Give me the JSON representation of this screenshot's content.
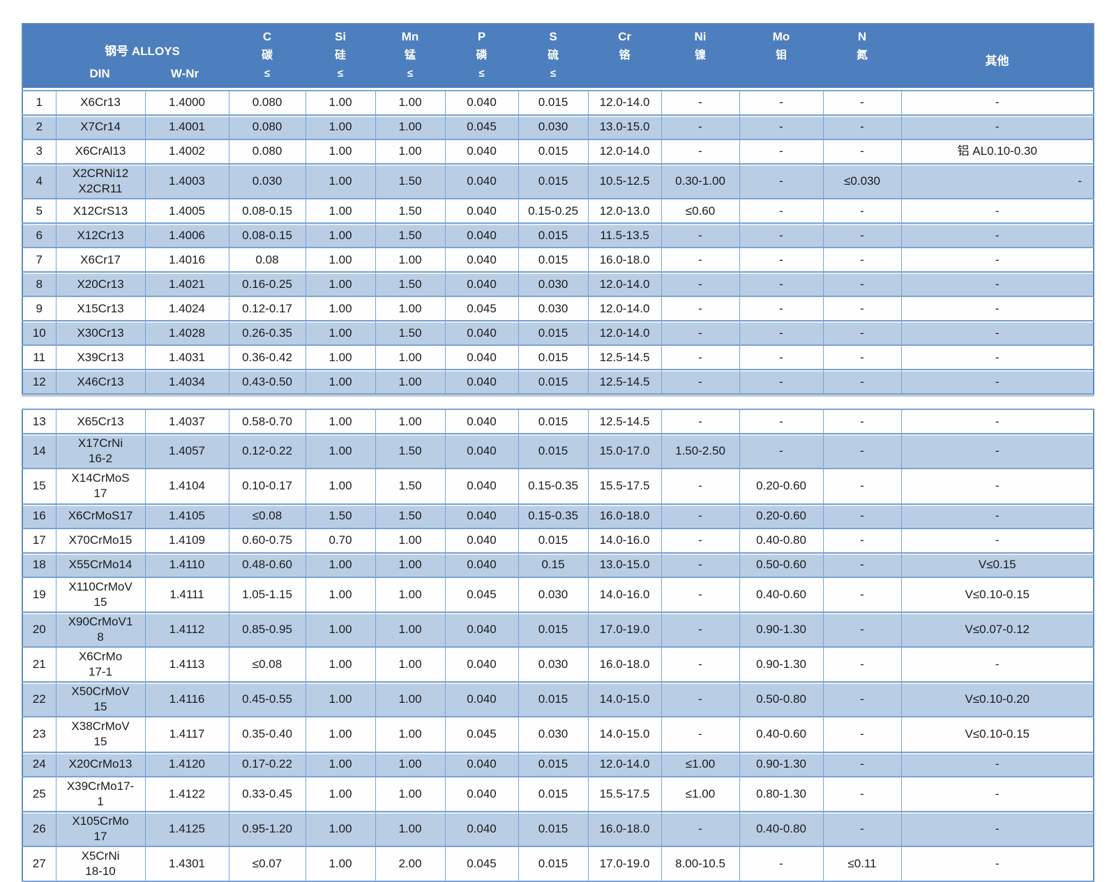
{
  "colors": {
    "header_bg": "#4d7ebd",
    "header_text": "#ffffff",
    "row_bg": "#fefefe",
    "row_alt_bg": "#b9cde4",
    "border": "#78a2d5",
    "body_text": "#1b1b1b"
  },
  "table": {
    "corner": "",
    "group_title": "钢号 ALLOYS",
    "sub_din": "DIN",
    "sub_wnr": "W-Nr",
    "cols": [
      {
        "sym": "C",
        "cn": "碳",
        "lim": "≤"
      },
      {
        "sym": "Si",
        "cn": "硅",
        "lim": "≤"
      },
      {
        "sym": "Mn",
        "cn": "锰",
        "lim": "≤"
      },
      {
        "sym": "P",
        "cn": "磷",
        "lim": "≤"
      },
      {
        "sym": "S",
        "cn": "硫",
        "lim": "≤"
      },
      {
        "sym": "Cr",
        "cn": "铬",
        "lim": ""
      },
      {
        "sym": "Ni",
        "cn": "镍",
        "lim": ""
      },
      {
        "sym": "Mo",
        "cn": "钼",
        "lim": ""
      },
      {
        "sym": "N",
        "cn": "氮",
        "lim": ""
      },
      {
        "sym": "其他",
        "cn": "",
        "lim": ""
      }
    ]
  },
  "chart_data": {
    "type": "table",
    "title": "钢号 ALLOYS — stainless steel alloy chemical composition (DIN / W-Nr)",
    "columns": [
      "#",
      "DIN",
      "W-Nr",
      "C 碳 ≤",
      "Si 硅 ≤",
      "Mn 锰 ≤",
      "P 磷 ≤",
      "S 硫 ≤",
      "Cr 铬",
      "Ni 镍",
      "Mo 钼",
      "N 氮",
      "其他"
    ],
    "other_right_aligned_rows": [
      "4"
    ],
    "blocks": [
      [
        [
          "1",
          "X6Cr13",
          "1.4000",
          "0.080",
          "1.00",
          "1.00",
          "0.040",
          "0.015",
          "12.0-14.0",
          "-",
          "-",
          "-",
          "-"
        ],
        [
          "2",
          "X7Cr14",
          "1.4001",
          "0.080",
          "1.00",
          "1.00",
          "0.045",
          "0.030",
          "13.0-15.0",
          "-",
          "-",
          "-",
          "-"
        ],
        [
          "3",
          "X6CrAl13",
          "1.4002",
          "0.080",
          "1.00",
          "1.00",
          "0.040",
          "0.015",
          "12.0-14.0",
          "-",
          "-",
          "-",
          "铝 AL0.10-0.30"
        ],
        [
          "4",
          "X2CRNi12\nX2CR11",
          "1.4003",
          "0.030",
          "1.00",
          "1.50",
          "0.040",
          "0.015",
          "10.5-12.5",
          "0.30-1.00",
          "-",
          "≤0.030",
          "-"
        ],
        [
          "5",
          "X12CrS13",
          "1.4005",
          "0.08-0.15",
          "1.00",
          "1.50",
          "0.040",
          "0.15-0.25",
          "12.0-13.0",
          "≤0.60",
          "-",
          "-",
          "-"
        ],
        [
          "6",
          "X12Cr13",
          "1.4006",
          "0.08-0.15",
          "1.00",
          "1.50",
          "0.040",
          "0.015",
          "11.5-13.5",
          "-",
          "-",
          "-",
          "-"
        ],
        [
          "7",
          "X6Cr17",
          "1.4016",
          "0.08",
          "1.00",
          "1.00",
          "0.040",
          "0.015",
          "16.0-18.0",
          "-",
          "-",
          "-",
          "-"
        ],
        [
          "8",
          "X20Cr13",
          "1.4021",
          "0.16-0.25",
          "1.00",
          "1.50",
          "0.040",
          "0.030",
          "12.0-14.0",
          "-",
          "-",
          "-",
          "-"
        ],
        [
          "9",
          "X15Cr13",
          "1.4024",
          "0.12-0.17",
          "1.00",
          "1.00",
          "0.045",
          "0.030",
          "12.0-14.0",
          "-",
          "-",
          "-",
          "-"
        ],
        [
          "10",
          "X30Cr13",
          "1.4028",
          "0.26-0.35",
          "1.00",
          "1.50",
          "0.040",
          "0.015",
          "12.0-14.0",
          "-",
          "-",
          "-",
          "-"
        ],
        [
          "11",
          "X39Cr13",
          "1.4031",
          "0.36-0.42",
          "1.00",
          "1.00",
          "0.040",
          "0.015",
          "12.5-14.5",
          "-",
          "-",
          "-",
          "-"
        ],
        [
          "12",
          "X46Cr13",
          "1.4034",
          "0.43-0.50",
          "1.00",
          "1.00",
          "0.040",
          "0.015",
          "12.5-14.5",
          "-",
          "-",
          "-",
          "-"
        ]
      ],
      [
        [
          "13",
          "X65Cr13",
          "1.4037",
          "0.58-0.70",
          "1.00",
          "1.00",
          "0.040",
          "0.015",
          "12.5-14.5",
          "-",
          "-",
          "-",
          "-"
        ],
        [
          "14",
          "X17CrNi\n16-2",
          "1.4057",
          "0.12-0.22",
          "1.00",
          "1.50",
          "0.040",
          "0.015",
          "15.0-17.0",
          "1.50-2.50",
          "-",
          "-",
          "-"
        ],
        [
          "15",
          "X14CrMoS\n17",
          "1.4104",
          "0.10-0.17",
          "1.00",
          "1.50",
          "0.040",
          "0.15-0.35",
          "15.5-17.5",
          "-",
          "0.20-0.60",
          "-",
          "-"
        ],
        [
          "16",
          "X6CrMoS17",
          "1.4105",
          "≤0.08",
          "1.50",
          "1.50",
          "0.040",
          "0.15-0.35",
          "16.0-18.0",
          "-",
          "0.20-0.60",
          "-",
          "-"
        ],
        [
          "17",
          "X70CrMo15",
          "1.4109",
          "0.60-0.75",
          "0.70",
          "1.00",
          "0.040",
          "0.015",
          "14.0-16.0",
          "-",
          "0.40-0.80",
          "-",
          "-"
        ],
        [
          "18",
          "X55CrMo14",
          "1.4110",
          "0.48-0.60",
          "1.00",
          "1.00",
          "0.040",
          "0.15",
          "13.0-15.0",
          "-",
          "0.50-0.60",
          "-",
          "V≤0.15"
        ],
        [
          "19",
          "X110CrMoV\n15",
          "1.4111",
          "1.05-1.15",
          "1.00",
          "1.00",
          "0.045",
          "0.030",
          "14.0-16.0",
          "-",
          "0.40-0.60",
          "-",
          "V≤0.10-0.15"
        ],
        [
          "20",
          "X90CrMoV1\n8",
          "1.4112",
          "0.85-0.95",
          "1.00",
          "1.00",
          "0.040",
          "0.015",
          "17.0-19.0",
          "-",
          "0.90-1.30",
          "-",
          "V≤0.07-0.12"
        ],
        [
          "21",
          "X6CrMo\n17-1",
          "1.4113",
          "≤0.08",
          "1.00",
          "1.00",
          "0.040",
          "0.030",
          "16.0-18.0",
          "-",
          "0.90-1.30",
          "-",
          "-"
        ],
        [
          "22",
          "X50CrMoV\n15",
          "1.4116",
          "0.45-0.55",
          "1.00",
          "1.00",
          "0.040",
          "0.015",
          "14.0-15.0",
          "-",
          "0.50-0.80",
          "-",
          "V≤0.10-0.20"
        ],
        [
          "23",
          "X38CrMoV\n15",
          "1.4117",
          "0.35-0.40",
          "1.00",
          "1.00",
          "0.045",
          "0.030",
          "14.0-15.0",
          "-",
          "0.40-0.60",
          "-",
          "V≤0.10-0.15"
        ],
        [
          "24",
          "X20CrMo13",
          "1.4120",
          "0.17-0.22",
          "1.00",
          "1.00",
          "0.040",
          "0.015",
          "12.0-14.0",
          "≤1.00",
          "0.90-1.30",
          "-",
          "-"
        ],
        [
          "25",
          "X39CrMo17-\n1",
          "1.4122",
          "0.33-0.45",
          "1.00",
          "1.00",
          "0.040",
          "0.015",
          "15.5-17.5",
          "≤1.00",
          "0.80-1.30",
          "-",
          "-"
        ],
        [
          "26",
          "X105CrMo\n17",
          "1.4125",
          "0.95-1.20",
          "1.00",
          "1.00",
          "0.040",
          "0.015",
          "16.0-18.0",
          "-",
          "0.40-0.80",
          "-",
          "-"
        ],
        [
          "27",
          "X5CrNi\n18-10",
          "1.4301",
          "≤0.07",
          "1.00",
          "2.00",
          "0.045",
          "0.015",
          "17.0-19.0",
          "8.00-10.5",
          "-",
          "≤0.11",
          "-"
        ]
      ]
    ]
  }
}
